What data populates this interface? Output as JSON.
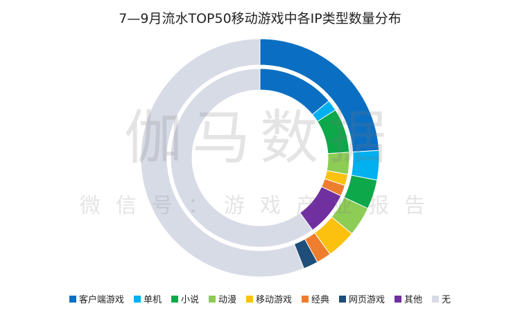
{
  "chart_data": {
    "type": "pie",
    "title": "7—9月流水TOP50移动游戏中各IP类型数量分布",
    "categories": [
      "客户端游戏",
      "单机",
      "小说",
      "动漫",
      "移动游戏",
      "经典",
      "网页游戏",
      "其他",
      "无"
    ],
    "colors": [
      "#0a6fc2",
      "#00b0ef",
      "#0ca84a",
      "#8dcc55",
      "#fcc10f",
      "#ee7d2e",
      "#1e4e79",
      "#7030a0",
      "#d7dbe6"
    ],
    "series": [
      {
        "ring": "outer",
        "values": [
          12,
          2,
          2,
          2,
          2,
          1,
          1,
          0,
          28
        ]
      },
      {
        "ring": "inner",
        "values": [
          7,
          1,
          4,
          2,
          1,
          1,
          0,
          4,
          30
        ]
      }
    ],
    "legend_position": "bottom"
  },
  "watermark": {
    "main": "伽马数据",
    "sub": "微信号：游戏产业报告"
  }
}
